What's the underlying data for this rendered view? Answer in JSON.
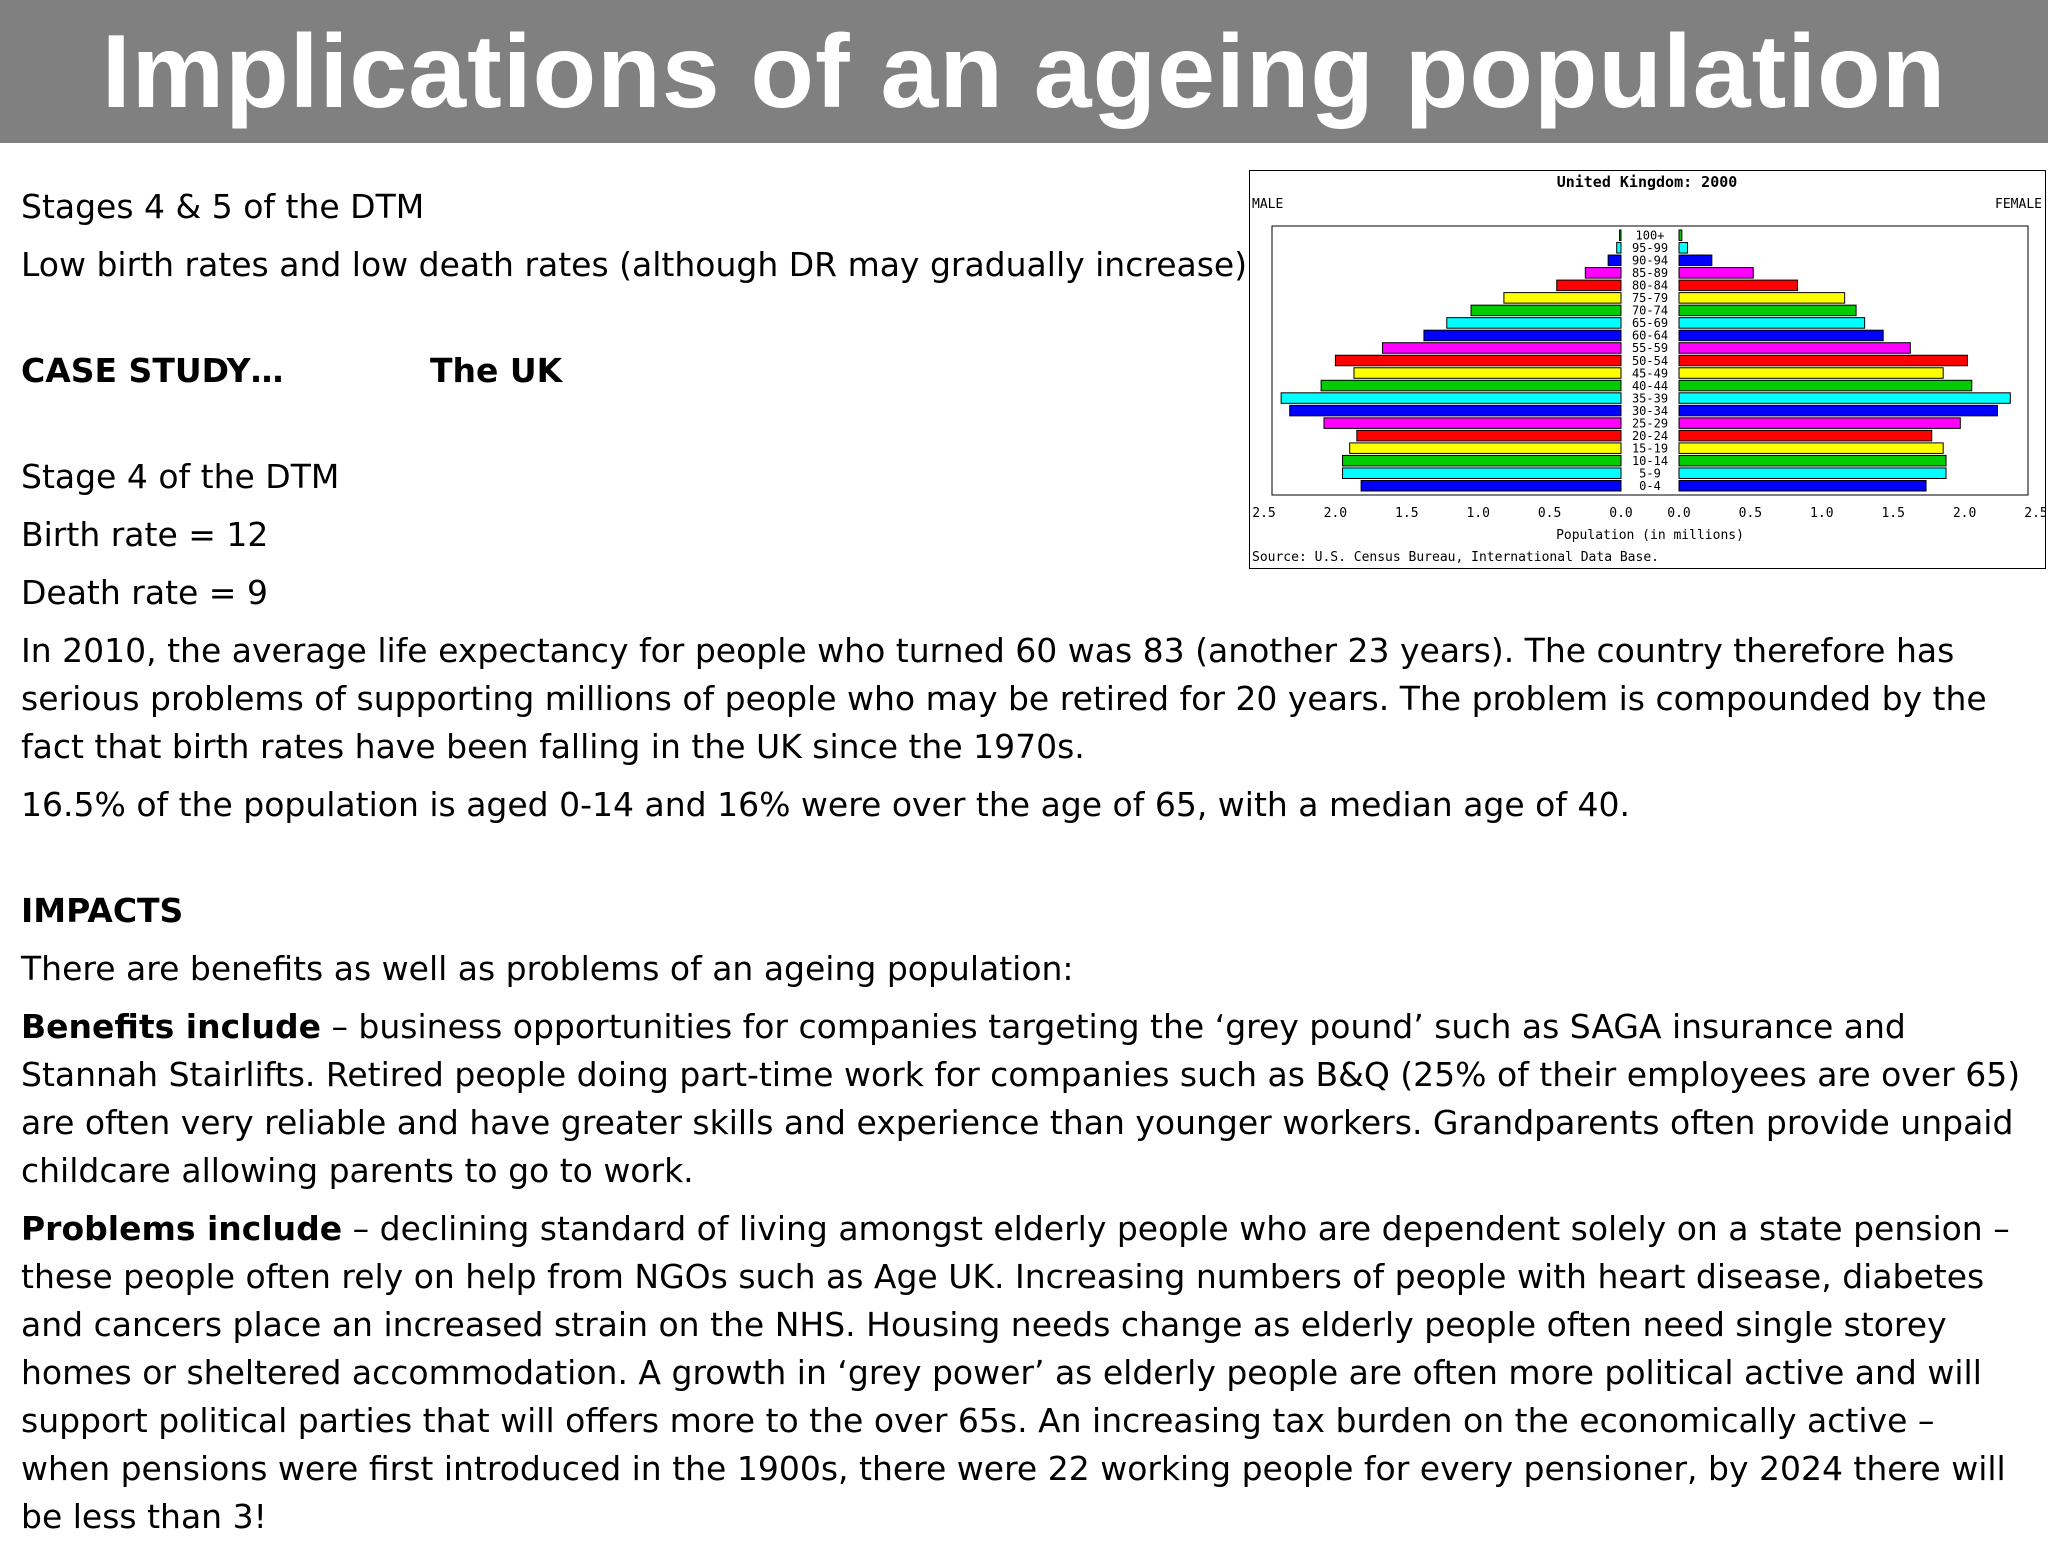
{
  "title": "Implications of an ageing population",
  "intro": {
    "line1": "Stages 4 & 5 of the DTM",
    "line2": "Low birth rates and low death rates (although DR may gradually increase)"
  },
  "case_study": {
    "label": "CASE STUDY…",
    "value": "The UK"
  },
  "stats": {
    "stage": "Stage 4 of the DTM",
    "birth_rate": "Birth rate = 12",
    "death_rate": "Death rate = 9",
    "life_expectancy": "In 2010, the average life expectancy for people who turned 60 was 83 (another 23 years). The country therefore has serious problems of supporting millions of people who may be retired for 20 years. The problem is compounded by the fact that birth rates have been falling in the UK since the 1970s.",
    "age_structure": "16.5% of the population is aged 0-14 and 16% were over the age of 65, with a median age of 40."
  },
  "impacts": {
    "heading": "IMPACTS",
    "intro": "There are benefits as well as problems of an ageing population:",
    "benefits_label": "Benefits include",
    "benefits_text": " – business opportunities for companies targeting the ‘grey pound’ such as SAGA insurance and Stannah Stairlifts. Retired people doing part-time work for companies such as B&Q (25% of their employees are over 65) are often very reliable and have greater skills and experience than younger workers. Grandparents often provide unpaid childcare allowing parents to go to work.",
    "problems_label": "Problems include",
    "problems_text": " – declining standard of living amongst elderly people who are dependent solely on a state pension – these people often rely on help from NGOs such as Age UK. Increasing numbers of people with heart disease, diabetes and cancers place an increased strain on the NHS. Housing needs change as elderly people often need single storey homes or sheltered accommodation. A growth in ‘grey power’ as elderly people are often more political active and will support political parties that will offers more to the over 65s. An increasing tax burden on the economically active – when pensions were first introduced in the 1900s, there were 22 working people for every pensioner, by 2024 there will be less than 3!"
  },
  "chart_data": {
    "type": "bar",
    "orientation": "horizontal-pyramid",
    "title": "United Kingdom: 2000",
    "left_label": "MALE",
    "right_label": "FEMALE",
    "xlabel": "Population (in millions)",
    "source": "Source: U.S. Census Bureau, International Data Base.",
    "xlim": [
      0,
      2.5
    ],
    "x_ticks": [
      "2.5",
      "2.0",
      "1.5",
      "1.0",
      "0.5",
      "0.0",
      "0.0",
      "0.5",
      "1.0",
      "1.5",
      "2.0",
      "2.5"
    ],
    "categories": [
      "0-4",
      "5-9",
      "10-14",
      "15-19",
      "20-24",
      "25-29",
      "30-34",
      "35-39",
      "40-44",
      "45-49",
      "50-54",
      "55-59",
      "60-64",
      "65-69",
      "70-74",
      "75-79",
      "80-84",
      "85-89",
      "90-94",
      "95-99",
      "100+"
    ],
    "bar_colors": [
      "#0000ff",
      "#00ffff",
      "#00cc00",
      "#ffff00",
      "#ff0000",
      "#ff00ff",
      "#0000ff",
      "#00ffff",
      "#00cc00",
      "#ffff00",
      "#ff0000",
      "#ff00ff",
      "#0000ff",
      "#00ffff",
      "#00cc00",
      "#ffff00",
      "#ff0000",
      "#ff00ff",
      "#0000ff",
      "#00ffff",
      "#00cc00"
    ],
    "series": [
      {
        "name": "MALE",
        "values": [
          1.82,
          1.95,
          1.95,
          1.9,
          1.85,
          2.08,
          2.32,
          2.38,
          2.1,
          1.87,
          2.0,
          1.67,
          1.38,
          1.22,
          1.05,
          0.82,
          0.45,
          0.25,
          0.09,
          0.03,
          0.01
        ]
      },
      {
        "name": "FEMALE",
        "values": [
          1.73,
          1.87,
          1.87,
          1.85,
          1.77,
          1.97,
          2.23,
          2.32,
          2.05,
          1.85,
          2.02,
          1.62,
          1.43,
          1.3,
          1.24,
          1.16,
          0.83,
          0.52,
          0.23,
          0.06,
          0.02
        ]
      }
    ]
  }
}
